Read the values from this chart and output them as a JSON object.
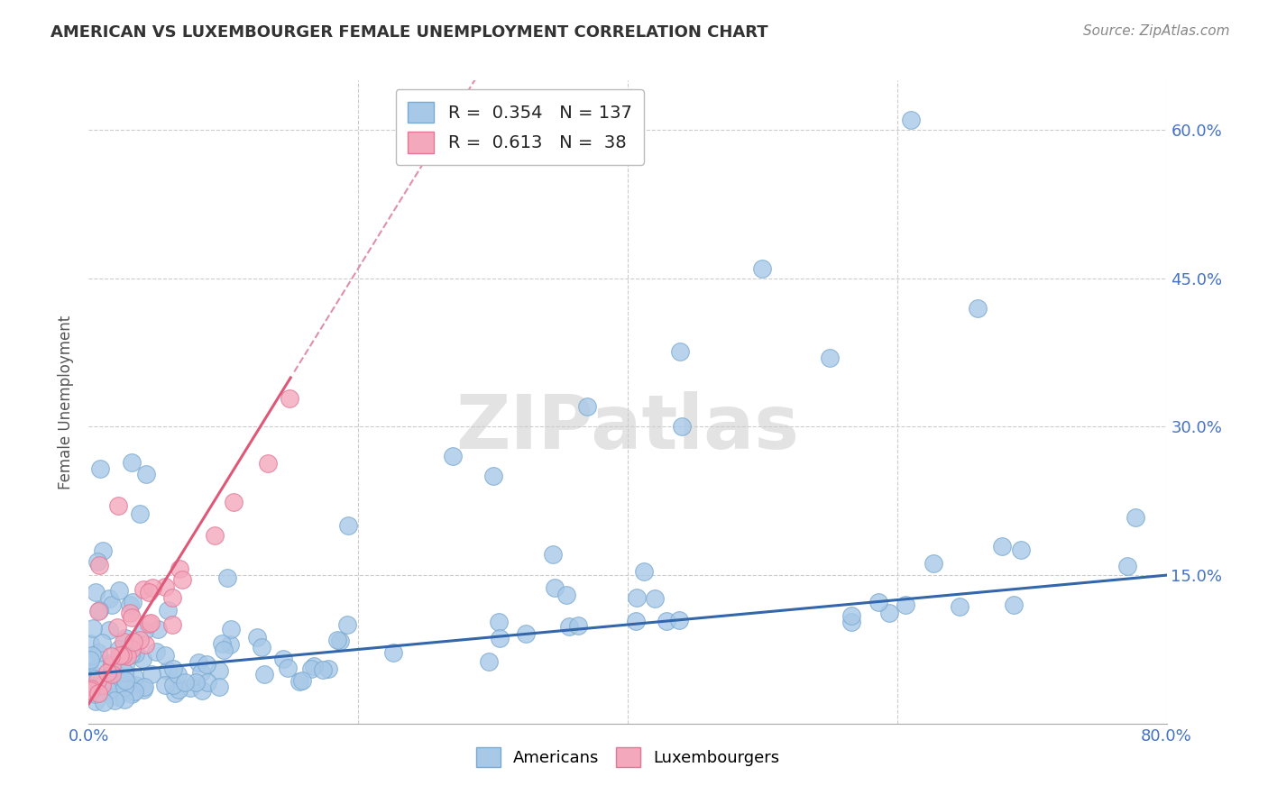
{
  "title": "AMERICAN VS LUXEMBOURGER FEMALE UNEMPLOYMENT CORRELATION CHART",
  "source": "Source: ZipAtlas.com",
  "ylabel": "Female Unemployment",
  "watermark": "ZIPatlas",
  "american_R": 0.354,
  "american_N": 137,
  "luxembourger_R": 0.613,
  "luxembourger_N": 38,
  "american_color": "#A8C8E8",
  "american_edge": "#7AAAD0",
  "luxembourger_color": "#F4A8BC",
  "luxembourger_edge": "#E07898",
  "american_line_color": "#3366AA",
  "luxembourger_line_color": "#E05878",
  "luxembourger_dash_color": "#E090A8",
  "background_color": "#FFFFFF",
  "grid_color": "#DDDDDD",
  "xlim": [
    0.0,
    0.8
  ],
  "ylim": [
    0.0,
    0.65
  ],
  "yticks": [
    0.0,
    0.15,
    0.3,
    0.45,
    0.6
  ],
  "title_color": "#333333",
  "source_color": "#888888",
  "axis_label_color": "#4472C4",
  "ylabel_color": "#555555"
}
